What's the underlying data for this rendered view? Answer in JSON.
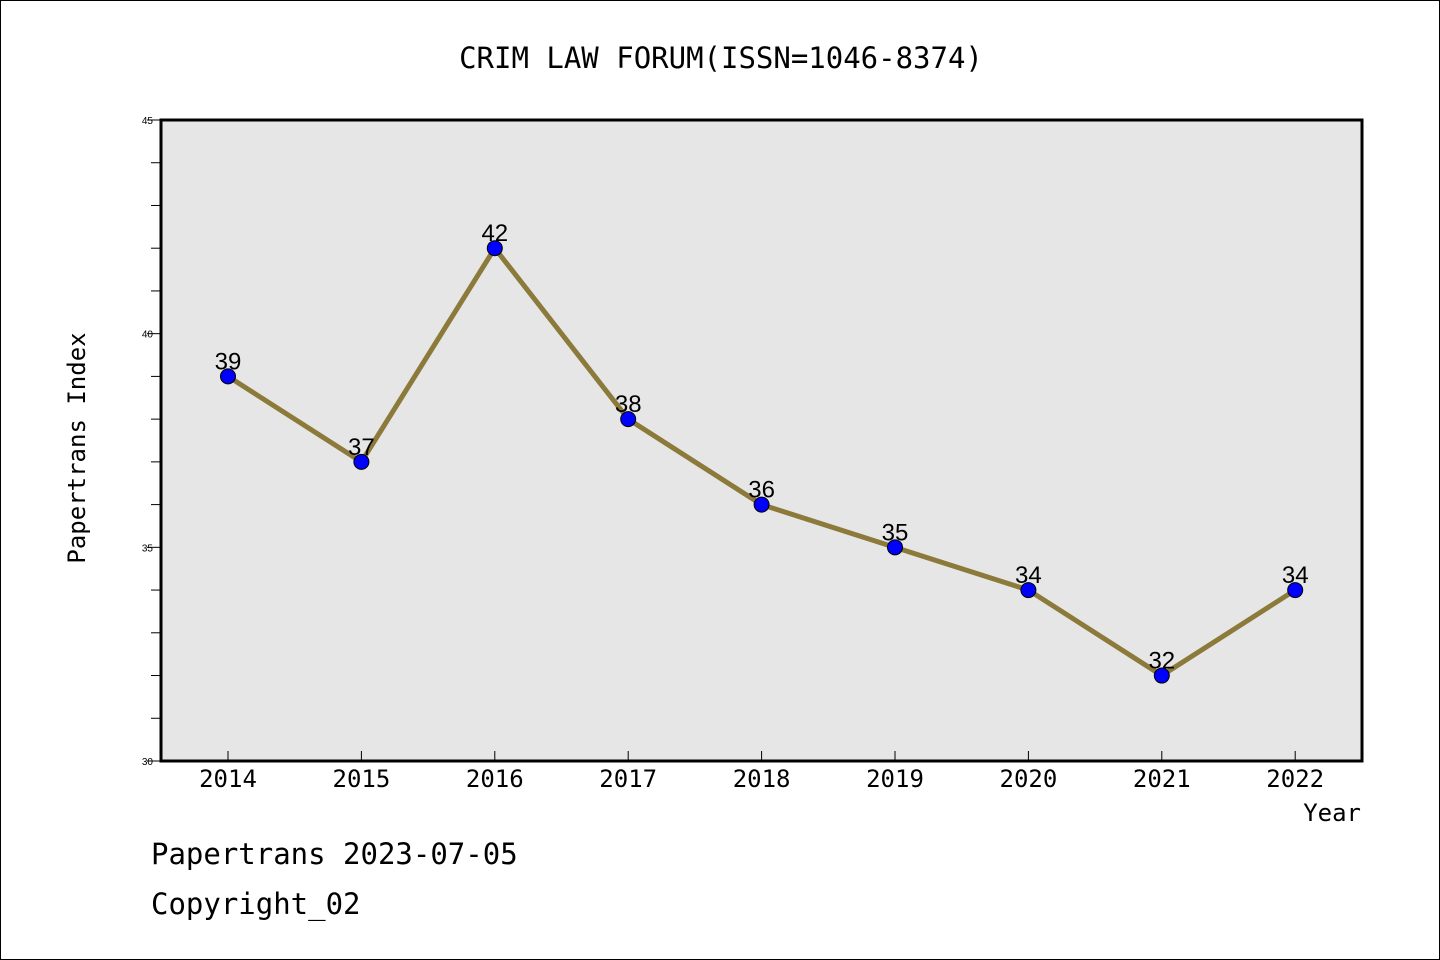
{
  "chart_data": {
    "type": "line",
    "title": "CRIM LAW FORUM(ISSN=1046-8374)",
    "xlabel": "Year",
    "ylabel": "Papertrans Index",
    "categories": [
      "2014",
      "2015",
      "2016",
      "2017",
      "2018",
      "2019",
      "2020",
      "2021",
      "2022"
    ],
    "values": [
      39,
      37,
      42,
      38,
      36,
      35,
      34,
      32,
      34
    ],
    "data_labels": [
      "39",
      "37",
      "42",
      "38",
      "36",
      "35",
      "34",
      "32",
      "34"
    ],
    "ylim": [
      30,
      45
    ],
    "y_ticks": [
      "30",
      "35",
      "40",
      "45"
    ],
    "grid": false,
    "legend": "none",
    "colors": {
      "plot_background": "#e6e6e6",
      "line": "#8b7a3a",
      "marker": "#0000ff"
    }
  },
  "footer": {
    "source": "Papertrans 2023-07-05",
    "copyright": "Copyright_02"
  }
}
